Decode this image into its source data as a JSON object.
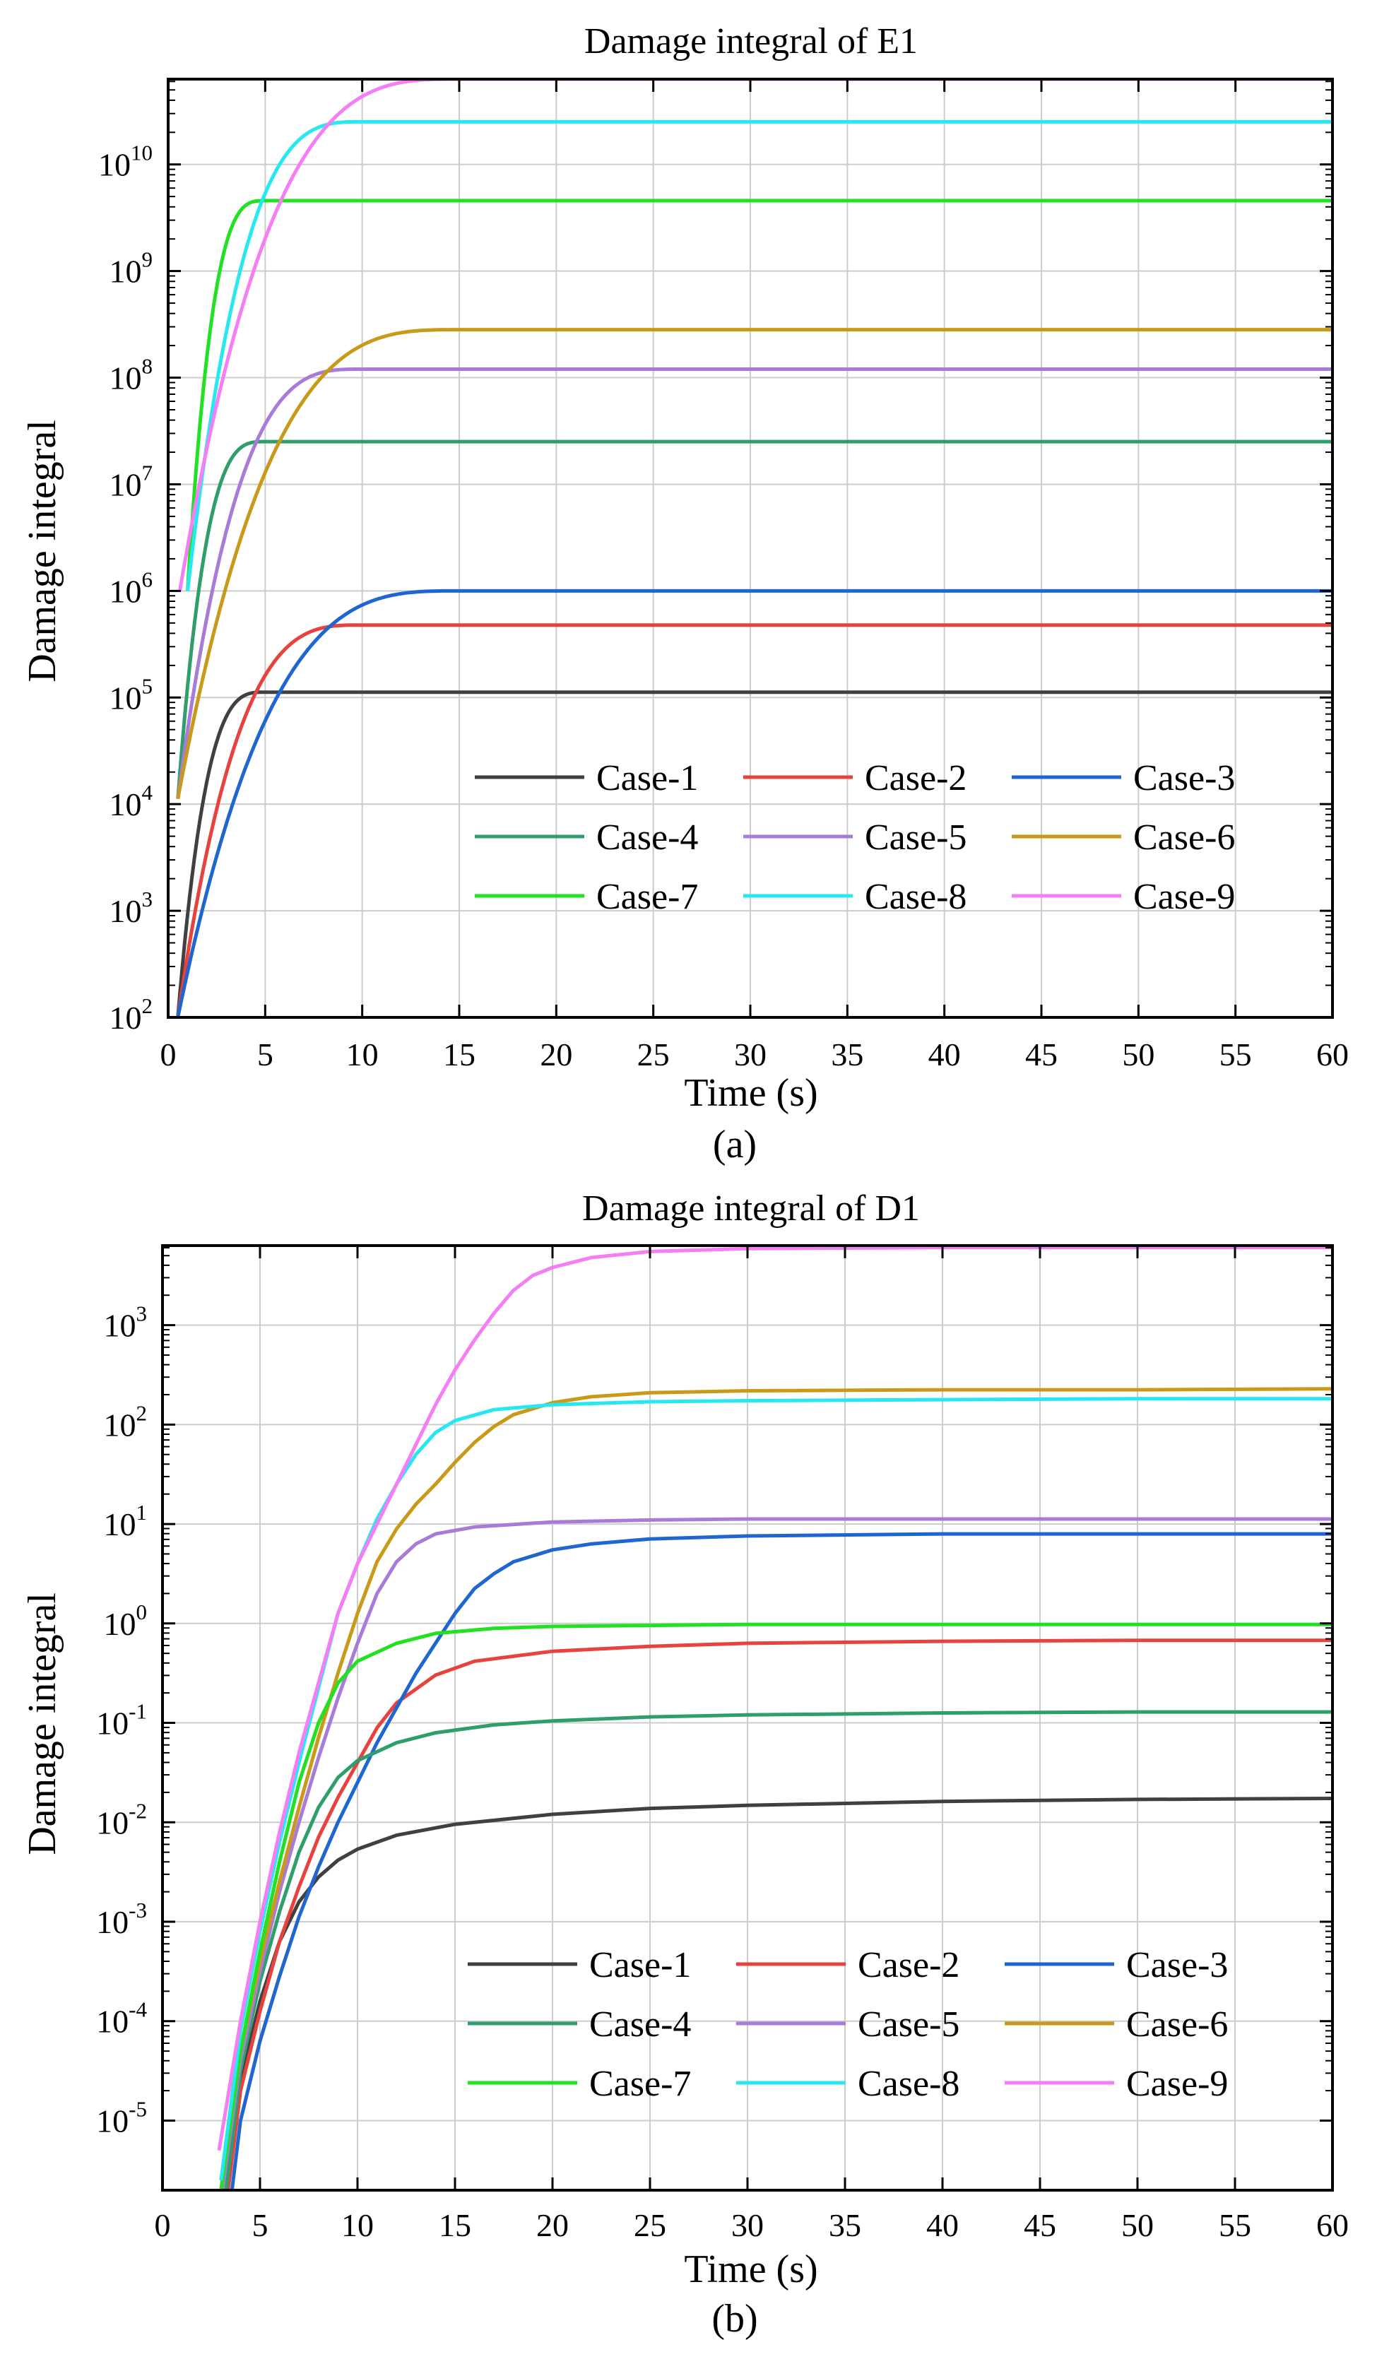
{
  "chart_data": [
    {
      "type": "line",
      "panel": "(a)",
      "title": "Damage integral of E1",
      "xlabel": "Time (s)",
      "ylabel": "Damage integral",
      "yscale": "log",
      "xlim": [
        0,
        60
      ],
      "ylim_log10": [
        2,
        10.8
      ],
      "x_ticks": [
        0,
        5,
        10,
        15,
        20,
        25,
        30,
        35,
        40,
        45,
        50,
        55,
        60
      ],
      "y_ticks": [
        {
          "base": "10",
          "exp": "2"
        },
        {
          "base": "10",
          "exp": "3"
        },
        {
          "base": "10",
          "exp": "4"
        },
        {
          "base": "10",
          "exp": "5"
        },
        {
          "base": "10",
          "exp": "6"
        },
        {
          "base": "10",
          "exp": "7"
        },
        {
          "base": "10",
          "exp": "8"
        },
        {
          "base": "10",
          "exp": "9"
        },
        {
          "base": "10",
          "exp": "10"
        }
      ],
      "y_tick_values": [
        2,
        3,
        4,
        5,
        6,
        7,
        8,
        9,
        10
      ],
      "grid": true,
      "legend_position": "lower-right",
      "series": [
        {
          "name": "Case-1",
          "color": "#404040",
          "model": "rise",
          "t0": 0.5,
          "tmax": 5,
          "v0": 2.0,
          "vmax": 5.05
        },
        {
          "name": "Case-2",
          "color": "#e8423f",
          "model": "rise",
          "t0": 0.5,
          "tmax": 10,
          "v0": 2.0,
          "vmax": 5.68
        },
        {
          "name": "Case-3",
          "color": "#1f66d1",
          "model": "rise",
          "t0": 0.5,
          "tmax": 15,
          "v0": 2.0,
          "vmax": 6.0
        },
        {
          "name": "Case-4",
          "color": "#2e9e6a",
          "model": "rise",
          "t0": 0.5,
          "tmax": 5,
          "v0": 4.05,
          "vmax": 7.4
        },
        {
          "name": "Case-5",
          "color": "#a97bd8",
          "model": "rise",
          "t0": 0.5,
          "tmax": 10,
          "v0": 4.05,
          "vmax": 8.08
        },
        {
          "name": "Case-6",
          "color": "#c99a19",
          "model": "rise",
          "t0": 0.5,
          "tmax": 15,
          "v0": 4.05,
          "vmax": 8.45
        },
        {
          "name": "Case-7",
          "color": "#22e022",
          "model": "rise",
          "t0": 1.0,
          "tmax": 5,
          "v0": 6.0,
          "vmax": 9.66
        },
        {
          "name": "Case-8",
          "color": "#27e8f0",
          "model": "rise",
          "t0": 1.0,
          "tmax": 10,
          "v0": 6.0,
          "vmax": 10.4
        },
        {
          "name": "Case-9",
          "color": "#f57ef5",
          "model": "rise",
          "t0": 0.6,
          "tmax": 15,
          "v0": 6.0,
          "vmax": 10.8
        }
      ]
    },
    {
      "type": "line",
      "panel": "(b)",
      "title": "Damage integral of D1",
      "xlabel": "Time (s)",
      "ylabel": "Damage integral",
      "yscale": "log",
      "xlim": [
        0,
        60
      ],
      "ylim_log10": [
        -5.7,
        3.8
      ],
      "x_ticks": [
        0,
        5,
        10,
        15,
        20,
        25,
        30,
        35,
        40,
        45,
        50,
        55,
        60
      ],
      "y_ticks": [
        {
          "base": "10",
          "exp": "-5"
        },
        {
          "base": "10",
          "exp": "-4"
        },
        {
          "base": "10",
          "exp": "-3"
        },
        {
          "base": "10",
          "exp": "-2"
        },
        {
          "base": "10",
          "exp": "-1"
        },
        {
          "base": "10",
          "exp": "0"
        },
        {
          "base": "10",
          "exp": "1"
        },
        {
          "base": "10",
          "exp": "2"
        },
        {
          "base": "10",
          "exp": "3"
        }
      ],
      "y_tick_values": [
        -5,
        -4,
        -3,
        -2,
        -1,
        0,
        1,
        2,
        3
      ],
      "grid": true,
      "legend_position": "lower-right",
      "series": [
        {
          "name": "Case-1",
          "color": "#404040",
          "points": [
            [
              3.2,
              -5.8
            ],
            [
              4,
              -4.6
            ],
            [
              5,
              -3.8
            ],
            [
              6,
              -3.2
            ],
            [
              7,
              -2.8
            ],
            [
              8,
              -2.55
            ],
            [
              9,
              -2.38
            ],
            [
              10,
              -2.27
            ],
            [
              12,
              -2.13
            ],
            [
              15,
              -2.02
            ],
            [
              20,
              -1.92
            ],
            [
              25,
              -1.86
            ],
            [
              30,
              -1.83
            ],
            [
              40,
              -1.79
            ],
            [
              50,
              -1.77
            ],
            [
              60,
              -1.76
            ]
          ]
        },
        {
          "name": "Case-2",
          "color": "#e8423f",
          "points": [
            [
              3.3,
              -5.8
            ],
            [
              4,
              -4.7
            ],
            [
              5,
              -3.9
            ],
            [
              6,
              -3.2
            ],
            [
              7,
              -2.65
            ],
            [
              8,
              -2.15
            ],
            [
              9,
              -1.75
            ],
            [
              10,
              -1.4
            ],
            [
              11,
              -1.05
            ],
            [
              12,
              -0.8
            ],
            [
              14,
              -0.52
            ],
            [
              16,
              -0.38
            ],
            [
              20,
              -0.28
            ],
            [
              25,
              -0.23
            ],
            [
              30,
              -0.2
            ],
            [
              40,
              -0.18
            ],
            [
              50,
              -0.17
            ],
            [
              60,
              -0.17
            ]
          ]
        },
        {
          "name": "Case-3",
          "color": "#1f66d1",
          "points": [
            [
              3.5,
              -5.8
            ],
            [
              4,
              -5.0
            ],
            [
              5,
              -4.2
            ],
            [
              6,
              -3.55
            ],
            [
              7,
              -2.95
            ],
            [
              8,
              -2.45
            ],
            [
              9,
              -2.0
            ],
            [
              10,
              -1.6
            ],
            [
              11,
              -1.2
            ],
            [
              12,
              -0.85
            ],
            [
              13,
              -0.5
            ],
            [
              14,
              -0.2
            ],
            [
              15,
              0.1
            ],
            [
              16,
              0.35
            ],
            [
              17,
              0.5
            ],
            [
              18,
              0.62
            ],
            [
              20,
              0.74
            ],
            [
              22,
              0.8
            ],
            [
              25,
              0.85
            ],
            [
              30,
              0.88
            ],
            [
              40,
              0.9
            ],
            [
              50,
              0.9
            ],
            [
              60,
              0.9
            ]
          ]
        },
        {
          "name": "Case-4",
          "color": "#2e9e6a",
          "points": [
            [
              3.2,
              -5.8
            ],
            [
              4,
              -4.5
            ],
            [
              5,
              -3.6
            ],
            [
              6,
              -2.9
            ],
            [
              7,
              -2.3
            ],
            [
              8,
              -1.85
            ],
            [
              9,
              -1.55
            ],
            [
              10,
              -1.38
            ],
            [
              12,
              -1.2
            ],
            [
              14,
              -1.1
            ],
            [
              17,
              -1.02
            ],
            [
              20,
              -0.98
            ],
            [
              25,
              -0.94
            ],
            [
              30,
              -0.92
            ],
            [
              40,
              -0.9
            ],
            [
              50,
              -0.89
            ],
            [
              60,
              -0.89
            ]
          ]
        },
        {
          "name": "Case-5",
          "color": "#a97bd8",
          "points": [
            [
              3,
              -5.8
            ],
            [
              4,
              -4.4
            ],
            [
              5,
              -3.5
            ],
            [
              6,
              -2.7
            ],
            [
              7,
              -2.0
            ],
            [
              8,
              -1.35
            ],
            [
              9,
              -0.75
            ],
            [
              10,
              -0.2
            ],
            [
              11,
              0.3
            ],
            [
              12,
              0.62
            ],
            [
              13,
              0.8
            ],
            [
              14,
              0.9
            ],
            [
              16,
              0.97
            ],
            [
              20,
              1.02
            ],
            [
              25,
              1.04
            ],
            [
              30,
              1.05
            ],
            [
              40,
              1.05
            ],
            [
              50,
              1.05
            ],
            [
              60,
              1.05
            ]
          ]
        },
        {
          "name": "Case-6",
          "color": "#c99a19",
          "points": [
            [
              3,
              -5.7
            ],
            [
              4,
              -4.3
            ],
            [
              5,
              -3.4
            ],
            [
              6,
              -2.6
            ],
            [
              7,
              -1.85
            ],
            [
              8,
              -1.15
            ],
            [
              9,
              -0.5
            ],
            [
              10,
              0.1
            ],
            [
              11,
              0.62
            ],
            [
              12,
              0.95
            ],
            [
              13,
              1.2
            ],
            [
              14,
              1.4
            ],
            [
              15,
              1.62
            ],
            [
              16,
              1.82
            ],
            [
              17,
              1.98
            ],
            [
              18,
              2.1
            ],
            [
              20,
              2.22
            ],
            [
              22,
              2.28
            ],
            [
              25,
              2.32
            ],
            [
              30,
              2.34
            ],
            [
              40,
              2.35
            ],
            [
              50,
              2.35
            ],
            [
              60,
              2.36
            ]
          ]
        },
        {
          "name": "Case-7",
          "color": "#22e022",
          "points": [
            [
              3,
              -5.7
            ],
            [
              4,
              -4.3
            ],
            [
              5,
              -3.3
            ],
            [
              6,
              -2.4
            ],
            [
              7,
              -1.6
            ],
            [
              8,
              -1.0
            ],
            [
              9,
              -0.6
            ],
            [
              10,
              -0.38
            ],
            [
              12,
              -0.2
            ],
            [
              14,
              -0.1
            ],
            [
              17,
              -0.05
            ],
            [
              20,
              -0.03
            ],
            [
              25,
              -0.02
            ],
            [
              30,
              -0.01
            ],
            [
              60,
              -0.01
            ]
          ]
        },
        {
          "name": "Case-8",
          "color": "#27e8f0",
          "points": [
            [
              3,
              -5.6
            ],
            [
              4,
              -4.1
            ],
            [
              5,
              -3.1
            ],
            [
              6,
              -2.2
            ],
            [
              7,
              -1.4
            ],
            [
              8,
              -0.65
            ],
            [
              9,
              0.1
            ],
            [
              10,
              0.6
            ],
            [
              11,
              1.05
            ],
            [
              12,
              1.4
            ],
            [
              13,
              1.7
            ],
            [
              14,
              1.92
            ],
            [
              15,
              2.04
            ],
            [
              17,
              2.15
            ],
            [
              20,
              2.2
            ],
            [
              25,
              2.23
            ],
            [
              30,
              2.24
            ],
            [
              40,
              2.25
            ],
            [
              50,
              2.26
            ],
            [
              60,
              2.26
            ]
          ]
        },
        {
          "name": "Case-9",
          "color": "#f57ef5",
          "points": [
            [
              2.9,
              -5.3
            ],
            [
              4,
              -4.0
            ],
            [
              5,
              -3.0
            ],
            [
              6,
              -2.1
            ],
            [
              7,
              -1.3
            ],
            [
              8,
              -0.6
            ],
            [
              9,
              0.1
            ],
            [
              10,
              0.6
            ],
            [
              11,
              1.0
            ],
            [
              12,
              1.4
            ],
            [
              13,
              1.8
            ],
            [
              14,
              2.2
            ],
            [
              15,
              2.55
            ],
            [
              16,
              2.85
            ],
            [
              17,
              3.12
            ],
            [
              18,
              3.35
            ],
            [
              19,
              3.5
            ],
            [
              20,
              3.58
            ],
            [
              22,
              3.68
            ],
            [
              25,
              3.74
            ],
            [
              30,
              3.77
            ],
            [
              40,
              3.78
            ],
            [
              50,
              3.78
            ],
            [
              60,
              3.78
            ]
          ]
        }
      ]
    }
  ],
  "captions": [
    "(a)",
    "(b)"
  ]
}
